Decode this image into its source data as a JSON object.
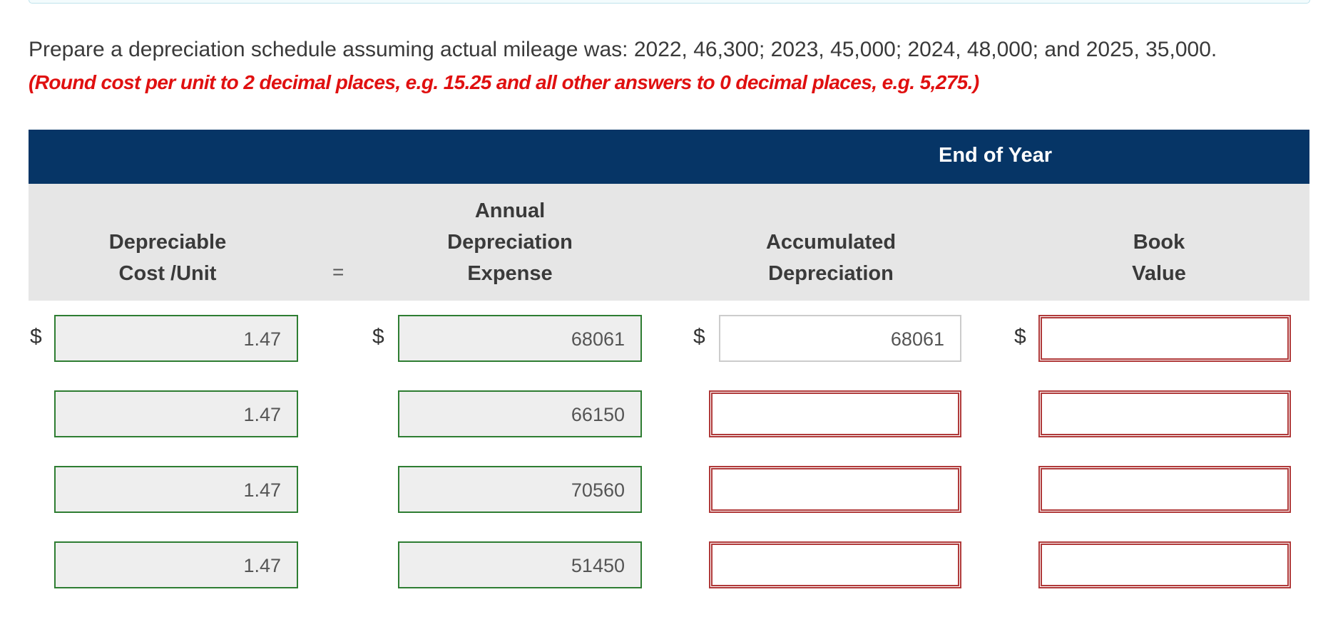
{
  "question": "Prepare a depreciation schedule assuming actual mileage was: 2022, 46,300; 2023, 45,000; 2024, 48,000; and 2025, 35,000.",
  "instruction": "(Round cost per unit to 2 decimal places, e.g. 15.25 and all other answers to 0 decimal places, e.g. 5,275.)",
  "table": {
    "group_header": "End of Year",
    "columns": {
      "cost_unit": [
        "Depreciable",
        "Cost /Unit"
      ],
      "equals": "=",
      "annual": [
        "Annual",
        "Depreciation",
        "Expense"
      ],
      "accumulated": [
        "Accumulated",
        "Depreciation"
      ],
      "book": [
        "Book",
        "Value"
      ]
    },
    "currency_symbol": "$",
    "rows": [
      {
        "cost_unit": "1.47",
        "annual": "68061",
        "accumulated": "68061",
        "book": ""
      },
      {
        "cost_unit": "1.47",
        "annual": "66150",
        "accumulated": "",
        "book": ""
      },
      {
        "cost_unit": "1.47",
        "annual": "70560",
        "accumulated": "",
        "book": ""
      },
      {
        "cost_unit": "1.47",
        "annual": "51450",
        "accumulated": "",
        "book": ""
      }
    ]
  }
}
